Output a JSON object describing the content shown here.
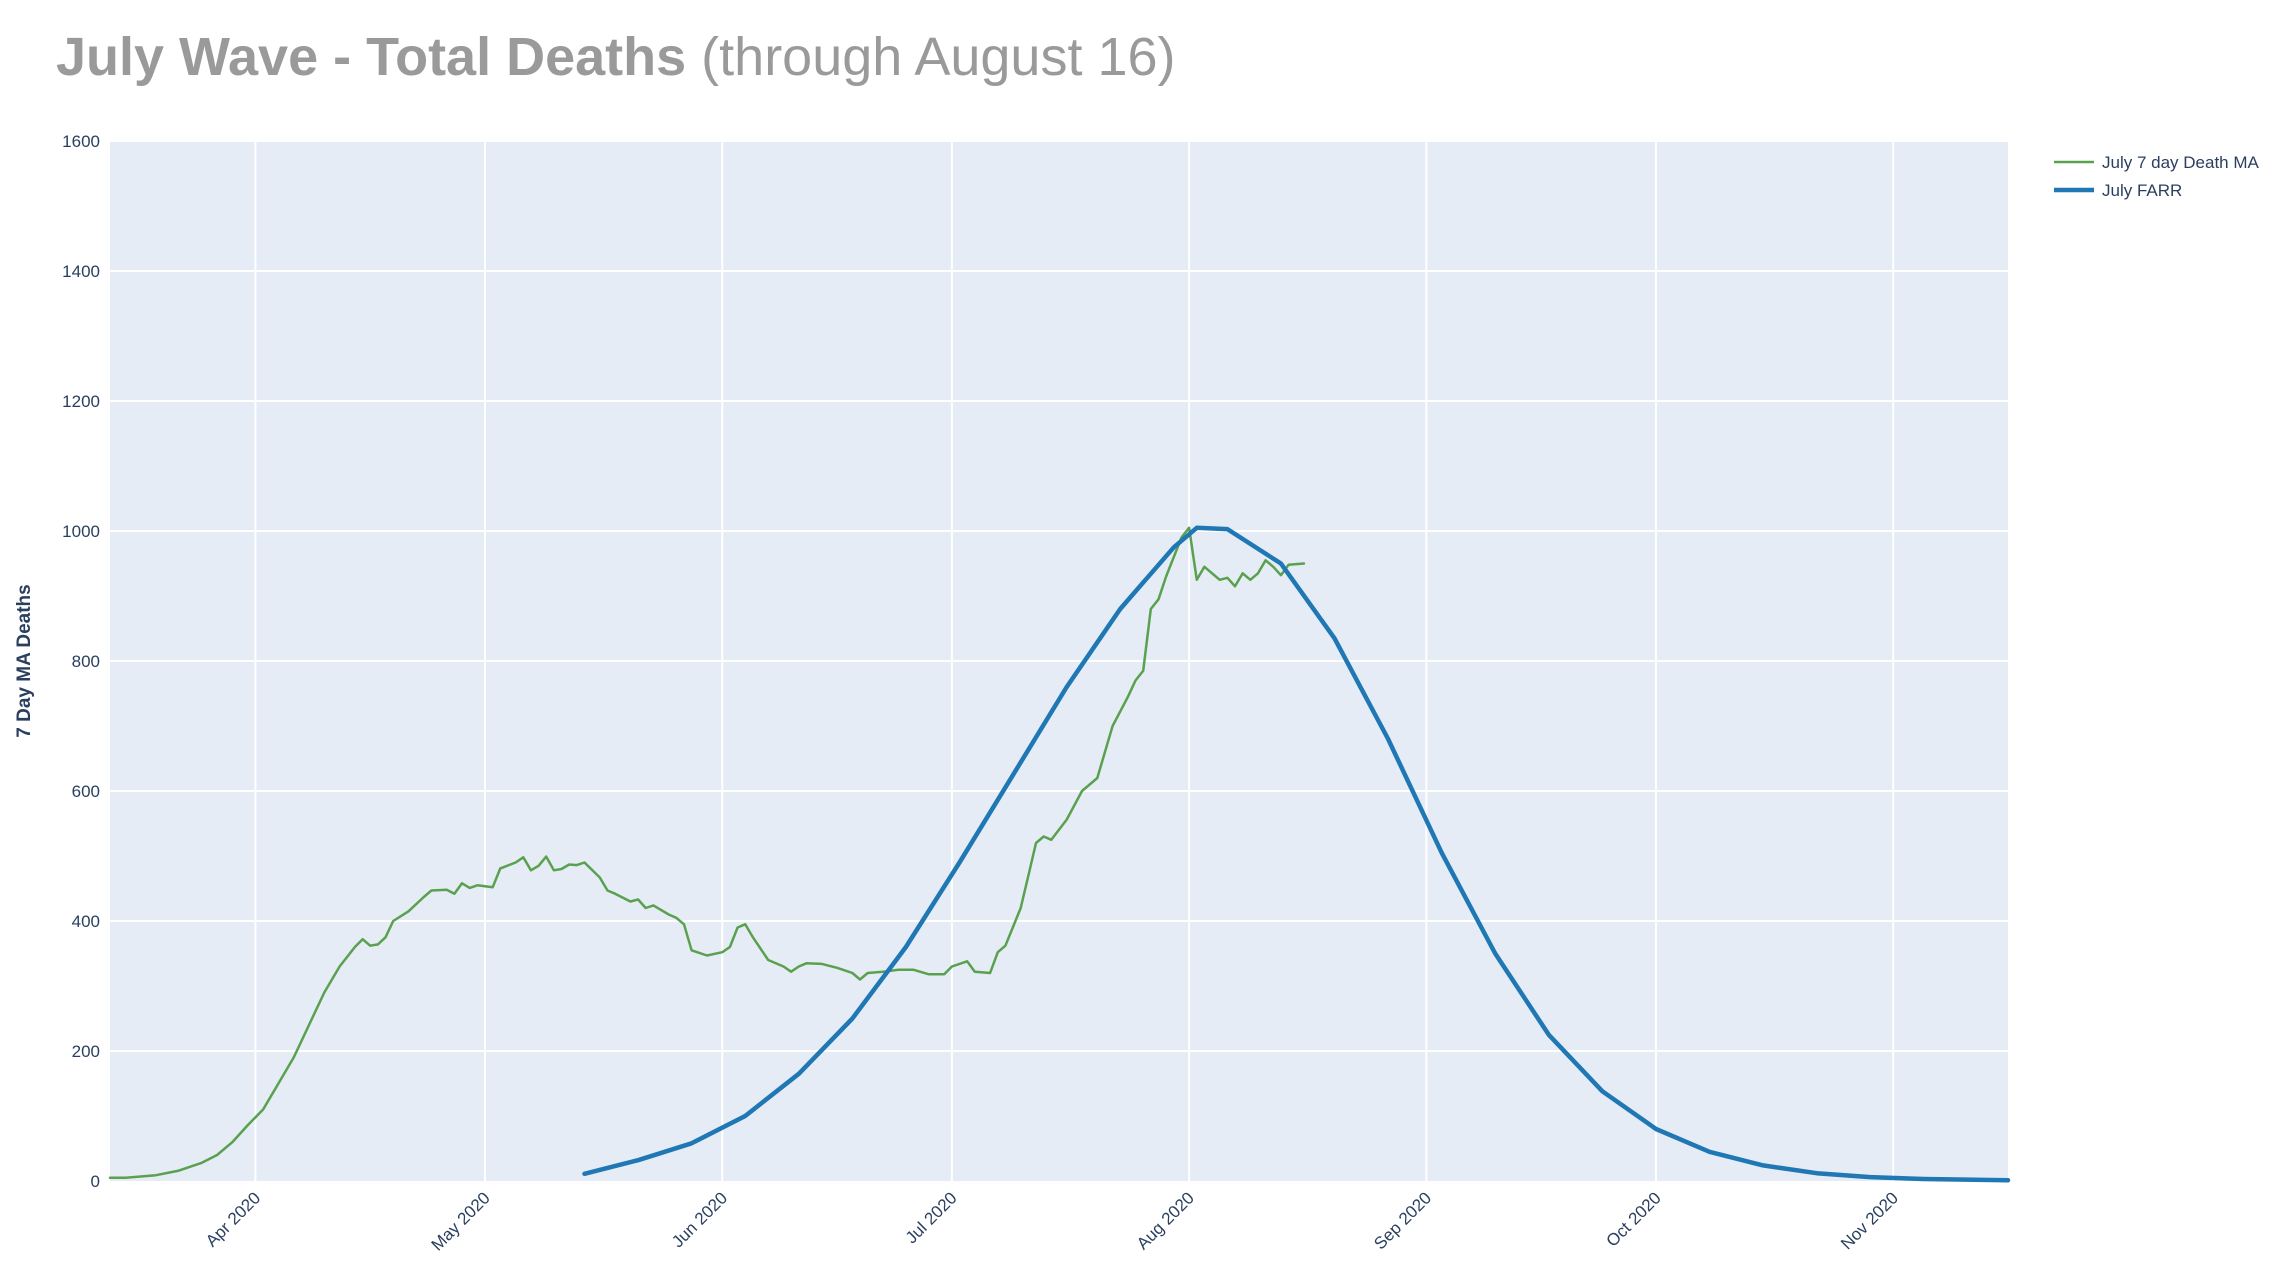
{
  "title": {
    "bold": "July Wave - Total Deaths",
    "light": "(through August 16)"
  },
  "chart_data": {
    "type": "line",
    "title": "July Wave - Total Deaths (through August 16)",
    "xlabel": "",
    "ylabel": "7 Day MA Deaths",
    "ylim": [
      0,
      1600
    ],
    "xlim": [
      "2020-03-13",
      "2020-11-16"
    ],
    "yticks": [
      0,
      200,
      400,
      600,
      800,
      1000,
      1200,
      1400,
      1600
    ],
    "xticks": [
      {
        "date": "2020-04-01",
        "label": "Apr 2020"
      },
      {
        "date": "2020-05-01",
        "label": "May 2020"
      },
      {
        "date": "2020-06-01",
        "label": "Jun 2020"
      },
      {
        "date": "2020-07-01",
        "label": "Jul 2020"
      },
      {
        "date": "2020-08-01",
        "label": "Aug 2020"
      },
      {
        "date": "2020-09-01",
        "label": "Sep 2020"
      },
      {
        "date": "2020-10-01",
        "label": "Oct 2020"
      },
      {
        "date": "2020-11-01",
        "label": "Nov 2020"
      }
    ],
    "grid": true,
    "legend_position": "top-right",
    "series": [
      {
        "name": "July 7 day Death MA",
        "color": "#59a14f",
        "points": [
          [
            "2020-03-13",
            5
          ],
          [
            "2020-03-15",
            5
          ],
          [
            "2020-03-19",
            9
          ],
          [
            "2020-03-22",
            16
          ],
          [
            "2020-03-25",
            28
          ],
          [
            "2020-03-27",
            40
          ],
          [
            "2020-03-29",
            60
          ],
          [
            "2020-03-31",
            86
          ],
          [
            "2020-04-02",
            110
          ],
          [
            "2020-04-04",
            150
          ],
          [
            "2020-04-06",
            190
          ],
          [
            "2020-04-08",
            240
          ],
          [
            "2020-04-10",
            290
          ],
          [
            "2020-04-12",
            330
          ],
          [
            "2020-04-14",
            360
          ],
          [
            "2020-04-15",
            372
          ],
          [
            "2020-04-16",
            362
          ],
          [
            "2020-04-17",
            364
          ],
          [
            "2020-04-18",
            375
          ],
          [
            "2020-04-19",
            400
          ],
          [
            "2020-04-21",
            415
          ],
          [
            "2020-04-23",
            437
          ],
          [
            "2020-04-24",
            447
          ],
          [
            "2020-04-26",
            448
          ],
          [
            "2020-04-27",
            442
          ],
          [
            "2020-04-28",
            458
          ],
          [
            "2020-04-29",
            451
          ],
          [
            "2020-04-30",
            455
          ],
          [
            "2020-05-02",
            452
          ],
          [
            "2020-05-03",
            481
          ],
          [
            "2020-05-05",
            490
          ],
          [
            "2020-05-06",
            498
          ],
          [
            "2020-05-07",
            478
          ],
          [
            "2020-05-08",
            485
          ],
          [
            "2020-05-09",
            499
          ],
          [
            "2020-05-10",
            478
          ],
          [
            "2020-05-11",
            480
          ],
          [
            "2020-05-12",
            487
          ],
          [
            "2020-05-13",
            486
          ],
          [
            "2020-05-14",
            490
          ],
          [
            "2020-05-16",
            467
          ],
          [
            "2020-05-17",
            447
          ],
          [
            "2020-05-18",
            442
          ],
          [
            "2020-05-20",
            430
          ],
          [
            "2020-05-21",
            433
          ],
          [
            "2020-05-22",
            420
          ],
          [
            "2020-05-23",
            424
          ],
          [
            "2020-05-25",
            410
          ],
          [
            "2020-05-26",
            405
          ],
          [
            "2020-05-27",
            395
          ],
          [
            "2020-05-28",
            355
          ],
          [
            "2020-05-30",
            347
          ],
          [
            "2020-06-01",
            352
          ],
          [
            "2020-06-02",
            360
          ],
          [
            "2020-06-03",
            390
          ],
          [
            "2020-06-04",
            395
          ],
          [
            "2020-06-05",
            375
          ],
          [
            "2020-06-07",
            340
          ],
          [
            "2020-06-09",
            330
          ],
          [
            "2020-06-10",
            322
          ],
          [
            "2020-06-11",
            330
          ],
          [
            "2020-06-12",
            335
          ],
          [
            "2020-06-14",
            334
          ],
          [
            "2020-06-16",
            328
          ],
          [
            "2020-06-18",
            320
          ],
          [
            "2020-06-19",
            310
          ],
          [
            "2020-06-20",
            320
          ],
          [
            "2020-06-22",
            322
          ],
          [
            "2020-06-24",
            325
          ],
          [
            "2020-06-26",
            325
          ],
          [
            "2020-06-28",
            318
          ],
          [
            "2020-06-30",
            318
          ],
          [
            "2020-07-01",
            330
          ],
          [
            "2020-07-03",
            338
          ],
          [
            "2020-07-04",
            322
          ],
          [
            "2020-07-06",
            320
          ],
          [
            "2020-07-07",
            352
          ],
          [
            "2020-07-08",
            362
          ],
          [
            "2020-07-10",
            420
          ],
          [
            "2020-07-11",
            470
          ],
          [
            "2020-07-12",
            520
          ],
          [
            "2020-07-13",
            530
          ],
          [
            "2020-07-14",
            525
          ],
          [
            "2020-07-16",
            556
          ],
          [
            "2020-07-18",
            600
          ],
          [
            "2020-07-20",
            620
          ],
          [
            "2020-07-22",
            700
          ],
          [
            "2020-07-24",
            745
          ],
          [
            "2020-07-25",
            770
          ],
          [
            "2020-07-26",
            785
          ],
          [
            "2020-07-27",
            880
          ],
          [
            "2020-07-28",
            895
          ],
          [
            "2020-07-29",
            930
          ],
          [
            "2020-07-30",
            960
          ],
          [
            "2020-07-31",
            990
          ],
          [
            "2020-08-01",
            1005
          ],
          [
            "2020-08-02",
            925
          ],
          [
            "2020-08-03",
            945
          ],
          [
            "2020-08-05",
            925
          ],
          [
            "2020-08-06",
            928
          ],
          [
            "2020-08-07",
            915
          ],
          [
            "2020-08-08",
            935
          ],
          [
            "2020-08-09",
            925
          ],
          [
            "2020-08-10",
            935
          ],
          [
            "2020-08-11",
            955
          ],
          [
            "2020-08-12",
            945
          ],
          [
            "2020-08-13",
            932
          ],
          [
            "2020-08-14",
            948
          ],
          [
            "2020-08-16",
            950
          ]
        ]
      },
      {
        "name": "July FARR",
        "color": "#1f77b4",
        "points": [
          [
            "2020-05-14",
            11
          ],
          [
            "2020-05-21",
            32
          ],
          [
            "2020-05-28",
            58
          ],
          [
            "2020-06-04",
            100
          ],
          [
            "2020-06-11",
            165
          ],
          [
            "2020-06-18",
            250
          ],
          [
            "2020-06-25",
            360
          ],
          [
            "2020-07-02",
            490
          ],
          [
            "2020-07-09",
            625
          ],
          [
            "2020-07-16",
            760
          ],
          [
            "2020-07-23",
            880
          ],
          [
            "2020-07-30",
            975
          ],
          [
            "2020-08-02",
            1005
          ],
          [
            "2020-08-06",
            1003
          ],
          [
            "2020-08-13",
            950
          ],
          [
            "2020-08-20",
            835
          ],
          [
            "2020-08-27",
            680
          ],
          [
            "2020-09-03",
            505
          ],
          [
            "2020-09-10",
            350
          ],
          [
            "2020-09-17",
            225
          ],
          [
            "2020-09-24",
            138
          ],
          [
            "2020-10-01",
            80
          ],
          [
            "2020-10-08",
            45
          ],
          [
            "2020-10-15",
            24
          ],
          [
            "2020-10-22",
            12
          ],
          [
            "2020-10-29",
            6
          ],
          [
            "2020-11-05",
            3
          ],
          [
            "2020-11-16",
            1
          ]
        ]
      }
    ]
  }
}
